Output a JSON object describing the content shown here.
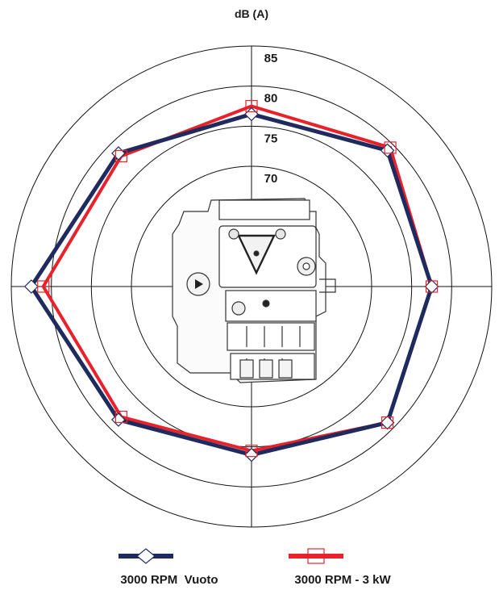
{
  "chart_data": {
    "type": "radar",
    "unit_label": "dB (A)",
    "rings": [
      70,
      75,
      80,
      85
    ],
    "radial_range": [
      55,
      85
    ],
    "directions": 8,
    "grid": true,
    "legend_position": "bottom",
    "series": [
      {
        "name": "3000 RPM  Vuoto",
        "color": "#1f2b5e",
        "marker": "diamond",
        "values": [
          76.5,
          79.0,
          77.5,
          79.0,
          76.0,
          78.5,
          82.5,
          78.5
        ]
      },
      {
        "name": "3000 RPM - 3 kW",
        "color": "#e8212b",
        "marker": "square",
        "values": [
          77.5,
          79.5,
          77.5,
          79.0,
          75.5,
          78.0,
          81.0,
          78.0
        ]
      }
    ]
  },
  "image": {
    "icon": "engine-icon"
  }
}
